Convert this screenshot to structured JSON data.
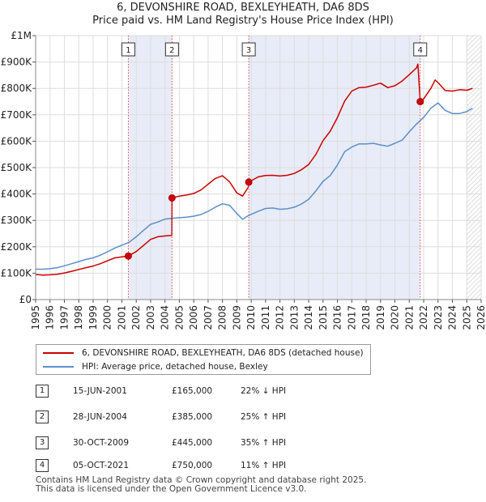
{
  "chart_data": {
    "type": "line",
    "title": "6, DEVONSHIRE ROAD, BEXLEYHEATH, DA6 8DS",
    "subtitle": "Price paid vs. HM Land Registry's House Price Index (HPI)",
    "xlabel": "",
    "ylabel": "",
    "xlim": [
      1995,
      2026
    ],
    "ylim": [
      0,
      1000000
    ],
    "x_ticks": [
      1995,
      1996,
      1997,
      1998,
      1999,
      2000,
      2001,
      2002,
      2003,
      2004,
      2005,
      2006,
      2007,
      2008,
      2009,
      2010,
      2011,
      2012,
      2013,
      2014,
      2015,
      2016,
      2017,
      2018,
      2019,
      2020,
      2021,
      2022,
      2023,
      2024,
      2025,
      2026
    ],
    "y_ticks": [
      {
        "value": 0,
        "label": "£0"
      },
      {
        "value": 100000,
        "label": "£100K"
      },
      {
        "value": 200000,
        "label": "£200K"
      },
      {
        "value": 300000,
        "label": "£300K"
      },
      {
        "value": 400000,
        "label": "£400K"
      },
      {
        "value": 500000,
        "label": "£500K"
      },
      {
        "value": 600000,
        "label": "£600K"
      },
      {
        "value": 700000,
        "label": "£700K"
      },
      {
        "value": 800000,
        "label": "£800K"
      },
      {
        "value": 900000,
        "label": "£900K"
      },
      {
        "value": 1000000,
        "label": "£1M"
      }
    ],
    "grid": true,
    "shaded_periods": [
      [
        2001.45,
        2004.49
      ],
      [
        2009.83,
        2021.76
      ]
    ],
    "hatched_from": 2025.0,
    "series": [
      {
        "name": "6, DEVONSHIRE ROAD, BEXLEYHEATH, DA6 8DS (detached house)",
        "color": "#cc0000",
        "x": [
          1995.0,
          1995.5,
          1996.0,
          1996.5,
          1997.0,
          1997.5,
          1998.0,
          1998.5,
          1999.0,
          1999.5,
          2000.0,
          2000.5,
          2001.0,
          2001.45,
          2002.0,
          2002.5,
          2003.0,
          2003.5,
          2004.0,
          2004.48,
          2004.49,
          2005.0,
          2005.5,
          2006.0,
          2006.5,
          2007.0,
          2007.5,
          2008.0,
          2008.5,
          2009.0,
          2009.4,
          2009.82,
          2009.83,
          2010.5,
          2011.0,
          2011.5,
          2012.0,
          2012.5,
          2013.0,
          2013.5,
          2014.0,
          2014.5,
          2015.0,
          2015.5,
          2016.0,
          2016.5,
          2017.0,
          2017.5,
          2018.0,
          2018.5,
          2019.0,
          2019.5,
          2020.0,
          2020.5,
          2021.0,
          2021.5,
          2021.6,
          2021.75,
          2021.76,
          2022.0,
          2022.5,
          2022.8,
          2023.0,
          2023.5,
          2024.0,
          2024.5,
          2025.0,
          2025.4
        ],
        "y": [
          95000,
          93000,
          94000,
          96000,
          101000,
          107000,
          114000,
          121000,
          127000,
          136000,
          147000,
          158000,
          162000,
          165000,
          182000,
          205000,
          228000,
          238000,
          241000,
          243000,
          385000,
          392000,
          396000,
          402000,
          415000,
          437000,
          459000,
          469000,
          446000,
          404000,
          392000,
          428000,
          445000,
          465000,
          470000,
          471000,
          468000,
          471000,
          478000,
          492000,
          512000,
          550000,
          602000,
          638000,
          690000,
          752000,
          790000,
          803000,
          805000,
          812000,
          820000,
          803000,
          810000,
          828000,
          852000,
          878000,
          892000,
          760000,
          750000,
          760000,
          800000,
          832000,
          822000,
          792000,
          790000,
          795000,
          793000,
          800000
        ]
      },
      {
        "name": "HPI: Average price, detached house, Bexley",
        "color": "#5b8fc9",
        "x": [
          1995.0,
          1995.5,
          1996.0,
          1996.5,
          1997.0,
          1997.5,
          1998.0,
          1998.5,
          1999.0,
          1999.5,
          2000.0,
          2000.5,
          2001.0,
          2001.5,
          2002.0,
          2002.5,
          2003.0,
          2003.5,
          2004.0,
          2004.5,
          2005.0,
          2005.5,
          2006.0,
          2006.5,
          2007.0,
          2007.5,
          2008.0,
          2008.5,
          2009.0,
          2009.4,
          2009.8,
          2010.5,
          2011.0,
          2011.5,
          2012.0,
          2012.5,
          2013.0,
          2013.5,
          2014.0,
          2014.5,
          2015.0,
          2015.5,
          2016.0,
          2016.5,
          2017.0,
          2017.5,
          2018.0,
          2018.5,
          2019.0,
          2019.5,
          2020.0,
          2020.5,
          2021.0,
          2021.5,
          2022.0,
          2022.5,
          2023.0,
          2023.5,
          2024.0,
          2024.5,
          2025.0,
          2025.4
        ],
        "y": [
          115000,
          115000,
          117000,
          121000,
          128000,
          136000,
          144000,
          152000,
          158000,
          168000,
          181000,
          195000,
          206000,
          217000,
          238000,
          262000,
          285000,
          294000,
          305000,
          308000,
          310000,
          312000,
          316000,
          322000,
          334000,
          350000,
          363000,
          357000,
          326000,
          304000,
          318000,
          335000,
          345000,
          347000,
          342000,
          344000,
          350000,
          362000,
          380000,
          412000,
          448000,
          470000,
          510000,
          560000,
          578000,
          590000,
          590000,
          592000,
          586000,
          581000,
          592000,
          604000,
          636000,
          665000,
          690000,
          725000,
          745000,
          717000,
          705000,
          705000,
          712000,
          725000
        ]
      }
    ],
    "sales": [
      {
        "label": "1",
        "x": 2001.45,
        "y": 165000
      },
      {
        "label": "2",
        "x": 2004.49,
        "y": 385000
      },
      {
        "label": "3",
        "x": 2009.83,
        "y": 445000
      },
      {
        "label": "4",
        "x": 2021.76,
        "y": 750000
      }
    ]
  },
  "legend": {
    "property_label": "6, DEVONSHIRE ROAD, BEXLEYHEATH, DA6 8DS (detached house)",
    "hpi_label": "HPI: Average price, detached house, Bexley"
  },
  "transactions": [
    {
      "num": "1",
      "date": "15-JUN-2001",
      "price": "£165,000",
      "hpi": "22% ↓ HPI"
    },
    {
      "num": "2",
      "date": "28-JUN-2004",
      "price": "£385,000",
      "hpi": "25% ↑ HPI"
    },
    {
      "num": "3",
      "date": "30-OCT-2009",
      "price": "£445,000",
      "hpi": "35% ↑ HPI"
    },
    {
      "num": "4",
      "date": "05-OCT-2021",
      "price": "£750,000",
      "hpi": "11% ↑ HPI"
    }
  ],
  "footer": {
    "line1": "Contains HM Land Registry data © Crown copyright and database right 2025.",
    "line2": "This data is licensed under the Open Government Licence v3.0."
  },
  "colors": {
    "property": "#cc0000",
    "hpi": "#5b8fc9",
    "shade": "#e8ecf8",
    "grid": "#dddddd"
  }
}
